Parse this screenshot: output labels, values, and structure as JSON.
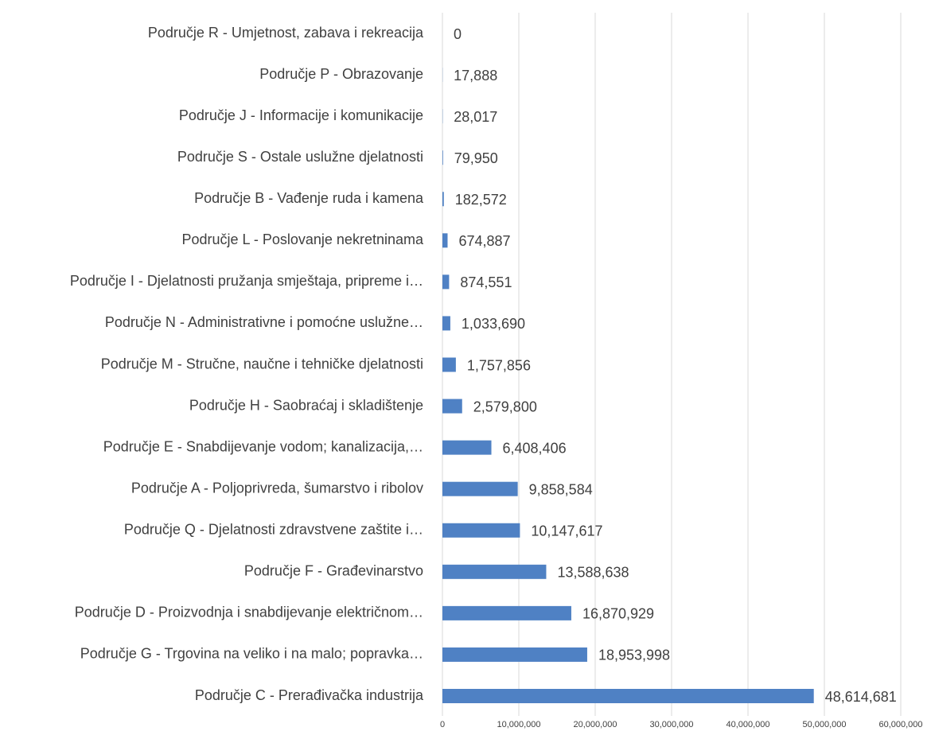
{
  "chart_data": {
    "type": "hbar",
    "categories": [
      "Područje R - Umjetnost, zabava i rekreacija",
      "Područje P - Obrazovanje",
      "Područje J - Informacije i komunikacije",
      "Područje S - Ostale uslužne djelatnosti",
      "Područje B - Vađenje ruda i kamena",
      "Područje L - Poslovanje nekretninama",
      "Područje I - Djelatnosti pružanja smještaja, pripreme i…",
      "Područje N - Administrativne i pomoćne uslužne…",
      "Područje M - Stručne, naučne i tehničke djelatnosti",
      "Područje H - Saobraćaj i skladištenje",
      "Područje E - Snabdijevanje vodom; kanalizacija,…",
      "Područje A - Poljoprivreda, šumarstvo i ribolov",
      "Područje Q - Djelatnosti zdravstvene zaštite i…",
      "Područje F - Građevinarstvo",
      "Područje D - Proizvodnja i snabdijevanje električnom…",
      "Područje G - Trgovina na veliko i na malo; popravka…",
      "Područje C - Prerađivačka industrija"
    ],
    "values": [
      0,
      17888,
      28017,
      79950,
      182572,
      674887,
      874551,
      1033690,
      1757856,
      2579800,
      6408406,
      9858584,
      10147617,
      13588638,
      16870929,
      18953998,
      48614681
    ],
    "value_labels": [
      "0",
      "17,888",
      "28,017",
      "79,950",
      "182,572",
      "674,887",
      "874,551",
      "1,033,690",
      "1,757,856",
      "2,579,800",
      "6,408,406",
      "9,858,584",
      "10,147,617",
      "13,588,638",
      "16,870,929",
      "18,953,998",
      "48,614,681"
    ],
    "color": "#4f81c4",
    "xlim": [
      0,
      60000000
    ],
    "xticks": [
      0,
      {
        "value": 10000000,
        "label": "10,000,000"
      },
      {
        "value": 20000000,
        "label": "20,000,000"
      },
      {
        "value": 30000000,
        "label": "30,000,000"
      },
      {
        "value": 40000000,
        "label": "40,000,000"
      },
      {
        "value": 50000000,
        "label": "50,000,000"
      },
      {
        "value": 60000000,
        "label": "60,000,000"
      }
    ],
    "grid": true
  }
}
